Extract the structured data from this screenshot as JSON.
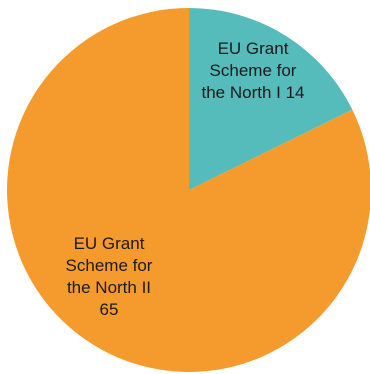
{
  "chart_data": {
    "type": "pie",
    "start_angle_deg": 0,
    "direction": "clockwise",
    "slices": [
      {
        "category_lines": [
          "EU Grant",
          "Scheme for",
          "the North I"
        ],
        "value": 14,
        "label_style": "inline-last",
        "color": "#55BBBB"
      },
      {
        "category_lines": [
          "EU Grant",
          "Scheme for",
          "the North II"
        ],
        "value": 65,
        "label_style": "below",
        "color": "#F59B2E"
      }
    ],
    "legend": "none",
    "data_labels": "category and value"
  }
}
